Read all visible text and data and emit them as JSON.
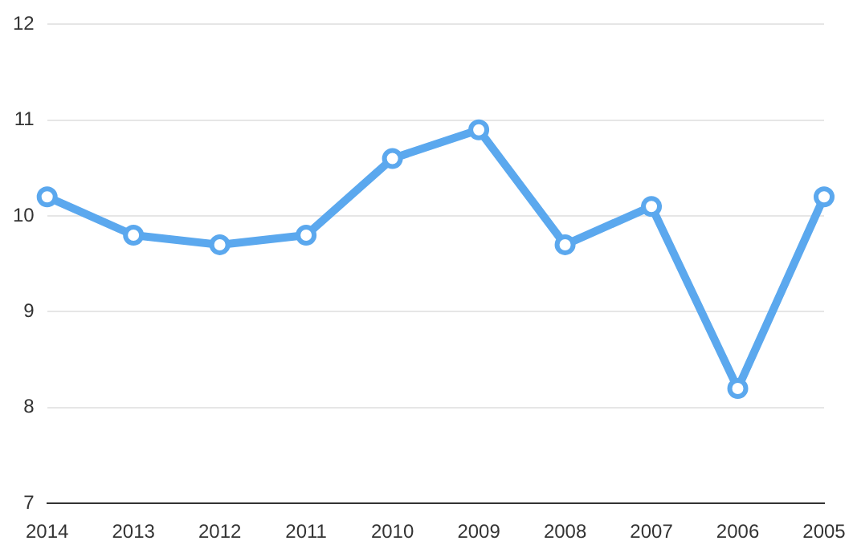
{
  "chart_data": {
    "type": "line",
    "categories": [
      "2014",
      "2013",
      "2012",
      "2011",
      "2010",
      "2009",
      "2008",
      "2007",
      "2006",
      "2005"
    ],
    "series": [
      {
        "color": "#5ba8ee",
        "values": [
          10.2,
          9.8,
          9.7,
          9.8,
          10.6,
          10.9,
          9.7,
          10.1,
          8.2,
          10.2
        ]
      }
    ],
    "ylim": [
      7,
      12
    ],
    "yticks": [
      7,
      8,
      9,
      10,
      11,
      12
    ],
    "grid": "y",
    "legend": false,
    "marker": "circle",
    "line_style": "solid"
  }
}
